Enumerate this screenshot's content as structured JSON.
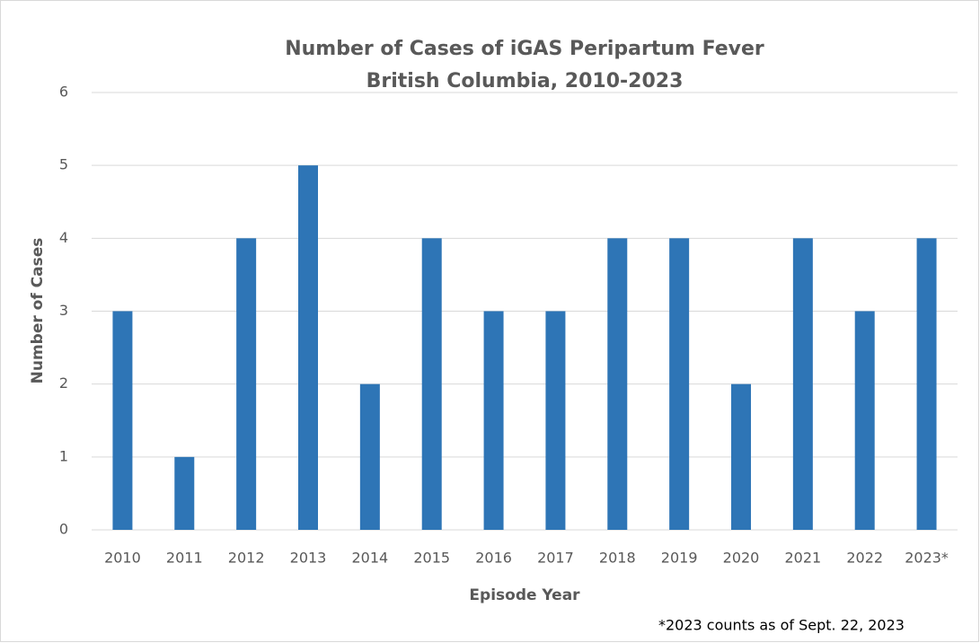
{
  "chart_data": {
    "type": "bar",
    "title": "Number of Cases of iGAS Peripartum Fever",
    "subtitle": "British Columbia, 2010-2023",
    "x_label": "Episode Year",
    "y_label": "Number of Cases",
    "annotation": "*2023 counts as of Sept. 22, 2023",
    "categories": [
      "2010",
      "2011",
      "2012",
      "2013",
      "2014",
      "2015",
      "2016",
      "2017",
      "2018",
      "2019",
      "2020",
      "2021",
      "2022",
      "2023*"
    ],
    "values": [
      3,
      1,
      4,
      5,
      2,
      4,
      3,
      3,
      4,
      4,
      2,
      4,
      3,
      4
    ],
    "color": "#2e75b6",
    "ylim": [
      0,
      6
    ],
    "yticks": [
      0,
      1,
      2,
      3,
      4,
      5,
      6
    ],
    "grid": true
  }
}
